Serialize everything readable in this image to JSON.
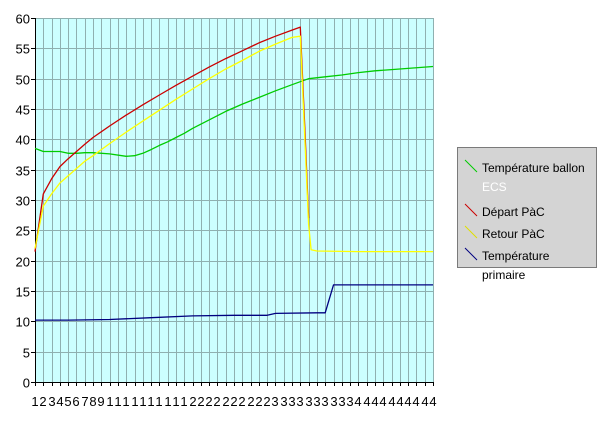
{
  "chart_data": {
    "type": "line",
    "title": "",
    "xlabel": "",
    "ylabel": "",
    "ylim": [
      0,
      60
    ],
    "yticks": [
      0,
      5,
      10,
      15,
      20,
      25,
      30,
      35,
      40,
      45,
      50,
      55,
      60
    ],
    "xlim": [
      1,
      49
    ],
    "x_tick_labels": [
      "1",
      "2",
      "3",
      "4",
      "5",
      "6",
      "7",
      "8",
      "9",
      "1",
      "1",
      "1",
      "1",
      "1",
      "1",
      "1",
      "1",
      "1",
      "1",
      "2",
      "2",
      "2",
      "2",
      "2",
      "2",
      "2",
      "2",
      "2",
      "2",
      "3",
      "3",
      "3",
      "3",
      "3",
      "3",
      "3",
      "3",
      "3",
      "3",
      "4",
      "4",
      "4",
      "4",
      "4",
      "4",
      "4",
      "4",
      "4",
      "4"
    ],
    "grid": true,
    "legend_position": "right",
    "series": [
      {
        "name": "Température ballon ECS",
        "color": "#00cc00",
        "x": [
          1,
          2,
          3,
          4,
          5,
          6,
          7,
          8,
          10,
          12,
          13,
          14,
          15,
          16,
          17,
          18,
          19,
          20,
          22,
          24,
          26,
          28,
          30,
          32,
          34,
          36,
          38,
          40,
          42,
          44,
          46,
          49
        ],
        "y": [
          38.5,
          38.0,
          38.0,
          38.0,
          37.7,
          37.7,
          37.8,
          37.8,
          37.6,
          37.2,
          37.3,
          37.7,
          38.3,
          39.0,
          39.6,
          40.3,
          41.0,
          41.8,
          43.2,
          44.6,
          45.8,
          46.9,
          48.0,
          49.0,
          50.0,
          50.3,
          50.6,
          51.0,
          51.3,
          51.5,
          51.7,
          52.0
        ]
      },
      {
        "name": "Départ PàC",
        "color": "#cc0000",
        "x": [
          1,
          2,
          3,
          4,
          5,
          6,
          7,
          8,
          10,
          12,
          14,
          16,
          18,
          20,
          22,
          24,
          26,
          28,
          30,
          32,
          33,
          33.6,
          34
        ],
        "y": [
          21.5,
          31.0,
          33.5,
          35.5,
          36.8,
          38.0,
          39.2,
          40.3,
          42.2,
          44.0,
          45.7,
          47.3,
          48.9,
          50.4,
          51.9,
          53.3,
          54.6,
          55.9,
          57.0,
          58.0,
          58.5,
          40.0,
          27.0
        ]
      },
      {
        "name": "Retour PàC",
        "color": "#ffff00",
        "x": [
          1,
          2,
          3,
          4,
          5,
          6,
          7,
          8,
          10,
          12,
          14,
          16,
          18,
          20,
          22,
          24,
          26,
          28,
          30,
          32,
          33,
          34,
          34.3,
          35,
          40,
          45,
          49
        ],
        "y": [
          22.0,
          29.0,
          31.0,
          32.8,
          34.0,
          35.2,
          36.4,
          37.3,
          39.3,
          41.2,
          43.0,
          44.8,
          46.6,
          48.3,
          50.0,
          51.6,
          53.0,
          54.5,
          55.7,
          56.8,
          57.0,
          26.0,
          21.8,
          21.6,
          21.5,
          21.5,
          21.5
        ]
      },
      {
        "name": "Température primaire",
        "color": "#000080",
        "x": [
          1,
          5,
          10,
          15,
          20,
          25,
          29,
          30,
          35,
          36,
          37,
          38,
          40,
          45,
          49
        ],
        "y": [
          10.2,
          10.2,
          10.3,
          10.6,
          10.9,
          11.0,
          11.0,
          11.3,
          11.4,
          11.4,
          16.0,
          16.0,
          16.0,
          16.0,
          16.0
        ]
      }
    ]
  },
  "legend": {
    "items": [
      {
        "line1": "Température ballon",
        "line2": "ECS",
        "color": "#00cc00"
      },
      {
        "line1": "Départ PàC",
        "color": "#cc0000"
      },
      {
        "line1": "Retour PàC",
        "color": "#ffff00"
      },
      {
        "line1": "Température primaire",
        "color": "#000080"
      }
    ]
  }
}
